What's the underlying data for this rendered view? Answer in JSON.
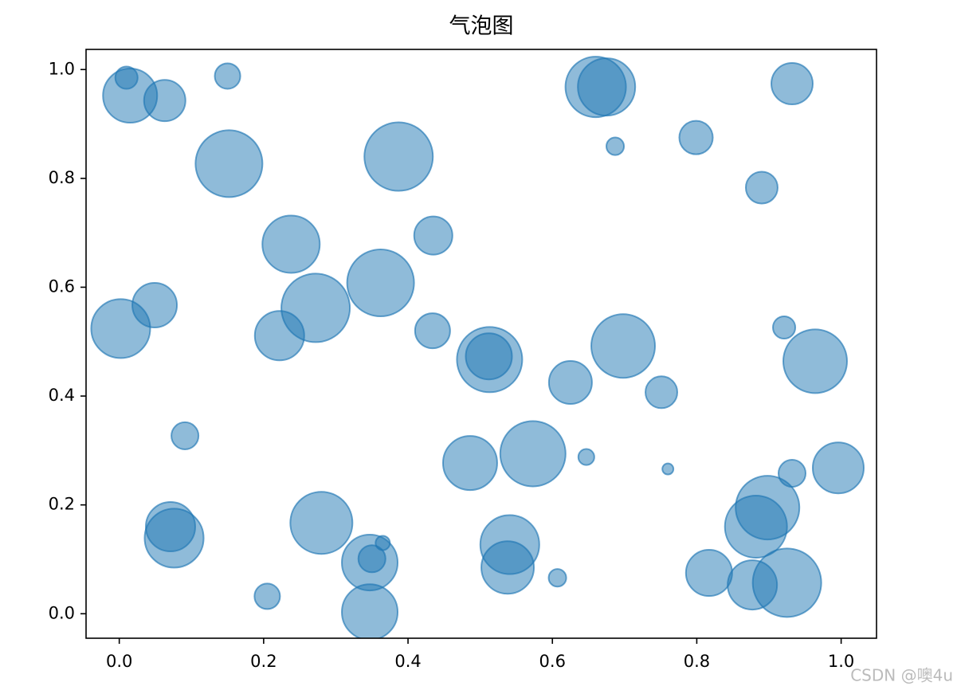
{
  "chart_data": {
    "type": "scatter",
    "title": "气泡图",
    "watermark": "CSDN @噢4u",
    "color": "#1f77b4",
    "alpha": 0.5,
    "x": [
      0.01,
      0.015,
      0.063,
      0.15,
      0.152,
      0.387,
      0.66,
      0.675,
      0.687,
      0.799,
      0.932,
      0.89,
      0.238,
      0.435,
      0.362,
      0.272,
      0.049,
      0.002,
      0.222,
      0.434,
      0.513,
      0.512,
      0.698,
      0.625,
      0.751,
      0.921,
      0.964,
      0.091,
      0.486,
      0.573,
      0.647,
      0.76,
      0.932,
      0.996,
      0.071,
      0.076,
      0.28,
      0.205,
      0.347,
      0.35,
      0.365,
      0.347,
      0.541,
      0.538,
      0.607,
      0.898,
      0.882,
      0.817,
      0.877,
      0.925
    ],
    "values": [
      0.985,
      0.952,
      0.943,
      0.988,
      0.827,
      0.84,
      0.968,
      0.968,
      0.859,
      0.875,
      0.974,
      0.783,
      0.679,
      0.695,
      0.608,
      0.562,
      0.567,
      0.524,
      0.511,
      0.52,
      0.467,
      0.473,
      0.492,
      0.425,
      0.407,
      0.526,
      0.464,
      0.327,
      0.277,
      0.294,
      0.288,
      0.266,
      0.258,
      0.268,
      0.16,
      0.139,
      0.167,
      0.032,
      0.094,
      0.101,
      0.13,
      0.003,
      0.127,
      0.085,
      0.066,
      0.195,
      0.16,
      0.075,
      0.053,
      0.057
    ],
    "sizes": [
      102,
      599,
      350,
      133,
      914,
      958,
      748,
      672,
      63,
      229,
      350,
      207,
      672,
      299,
      914,
      958,
      406,
      710,
      498,
      251,
      871,
      436,
      829,
      378,
      207,
      102,
      829,
      150,
      599,
      871,
      52,
      25,
      150,
      531,
      498,
      710,
      788,
      133,
      635,
      150,
      42,
      635,
      710,
      564,
      63,
      829,
      788,
      436,
      498,
      958
    ],
    "xlim": [
      -0.046,
      1.049
    ],
    "ylim": [
      -0.045,
      1.037
    ],
    "xticks": [
      {
        "value": 0,
        "label": "0.0"
      },
      0.2,
      0.4,
      0.6,
      0.8,
      {
        "value": 1,
        "label": "1.0"
      }
    ],
    "yticks": [
      {
        "value": 0,
        "label": "0.0"
      },
      0.2,
      0.4,
      0.6,
      0.8,
      {
        "value": 1,
        "label": "1.0"
      }
    ]
  }
}
